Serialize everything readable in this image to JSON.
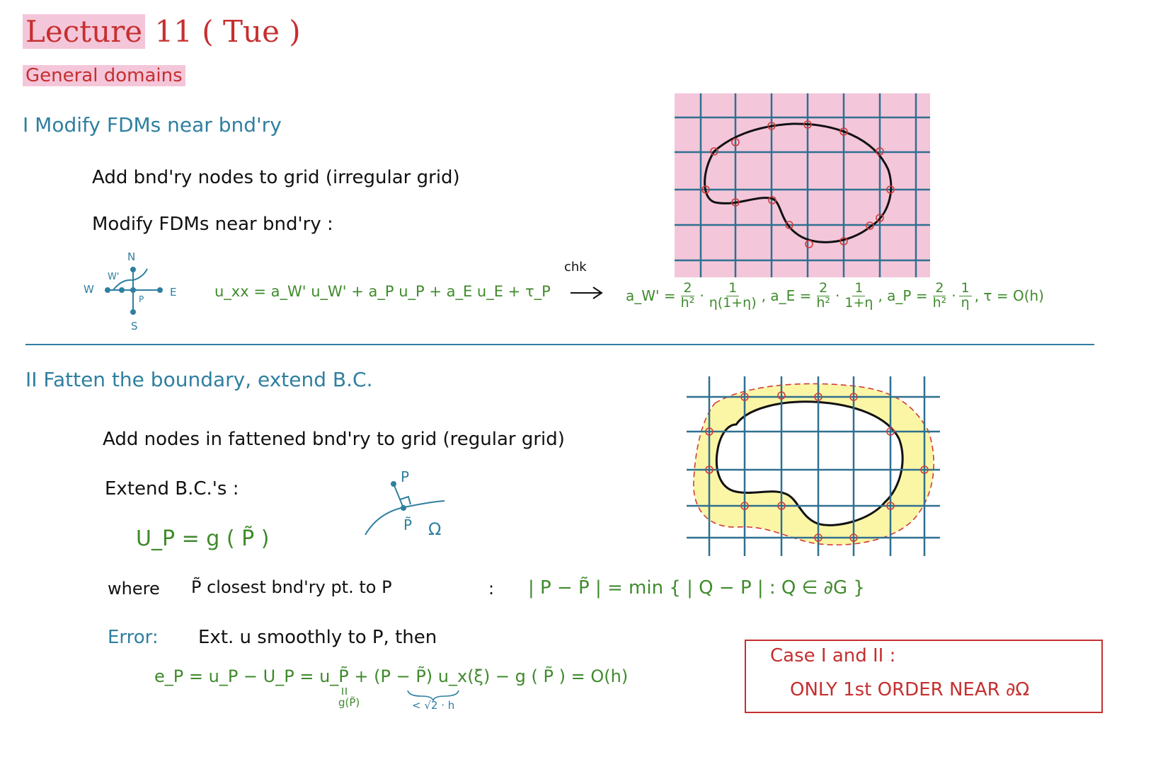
{
  "header": {
    "title_word": "Lecture",
    "title_rest": "11  ( Tue )",
    "subtitle": "General domains"
  },
  "section1": {
    "heading": "I  Modify FDMs near bnd'ry",
    "line1": "Add bnd'ry nodes to grid  (irregular grid)",
    "line2": "Modify FDMs near bnd'ry :",
    "stencil": {
      "N": "N",
      "S": "S",
      "W": "W",
      "E": "E",
      "Wp": "W'",
      "P": "P"
    },
    "eq_lhs": "u_xx  =  a_W' u_W'  + a_P u_P + a_E u_E + τ_P",
    "chk": "chk",
    "aW_label": "a_W' =",
    "aW_f1": {
      "num": "2",
      "den": "h²"
    },
    "aW_f2": {
      "num": "1",
      "den": "η(1+η)"
    },
    "aE_label": ",  a_E =",
    "aE_f1": {
      "num": "2",
      "den": "h²"
    },
    "aE_f2": {
      "num": "1",
      "den": "1+η"
    },
    "aP_label": ",  a_P =",
    "aP_f1": {
      "num": "2",
      "den": "h²"
    },
    "aP_f2": {
      "num": "1",
      "den": "η"
    },
    "tau": ",  τ = O(h)"
  },
  "section2": {
    "heading": "II  Fatten the boundary, extend B.C.",
    "line1": "Add nodes in fattened bnd'ry to grid (regular grid)",
    "line2": "Extend B.C.'s :",
    "bc": "U_P  =  g ( P̃ )",
    "sketch": {
      "P": "P",
      "Ptilde": "P̃",
      "Omega": "Ω"
    },
    "where": "where",
    "where_def": "P̃   closest bnd'ry pt. to  P",
    "colon": ":",
    "minexpr": "| P − P̃ |  =  min { | Q − P | :  Q ∈ ∂G }",
    "error_label": "Error:",
    "error_text": "Ext.  u  smoothly to  P,  then",
    "error_eq": "e_P  =  u_P − U_P   =   u_P̃  +  (P − P̃) u_x(ξ)  −  g ( P̃ )    =  O(h)",
    "under_g": "g(P̃)",
    "under_h": "< √2 · h"
  },
  "box": {
    "line1": "Case  I  and  II :",
    "line2": "ONLY  1st  ORDER  NEAR ∂Ω"
  },
  "colors": {
    "red": "#c62f2f",
    "blue": "#2f7fa0",
    "green": "#3f8a2c",
    "pink_fill": "#f4c6da",
    "yellow_fill": "#fbf6a6",
    "grid": "#2f7090"
  }
}
